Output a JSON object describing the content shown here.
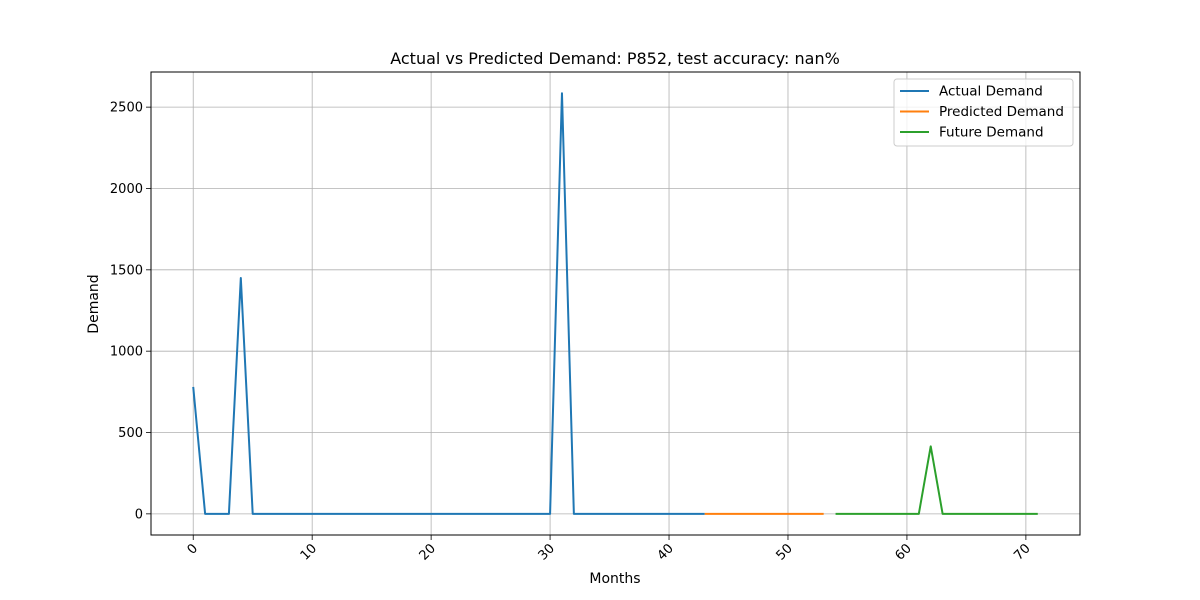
{
  "chart_data": {
    "type": "line",
    "title": "Actual vs Predicted Demand: P852, test accuracy: nan%",
    "xlabel": "Months",
    "ylabel": "Demand",
    "xlim": [
      -3.55,
      74.55
    ],
    "ylim": [
      -130,
      2716
    ],
    "xticks": [
      0,
      10,
      20,
      30,
      40,
      50,
      60,
      70
    ],
    "yticks": [
      0,
      500,
      1000,
      1500,
      2000,
      2500
    ],
    "grid": true,
    "legend_position": "top-right",
    "series": [
      {
        "name": "Actual Demand",
        "color": "#1f77b4",
        "x": [
          0,
          1,
          2,
          3,
          4,
          5,
          6,
          7,
          8,
          9,
          10,
          11,
          12,
          13,
          14,
          15,
          16,
          17,
          18,
          19,
          20,
          21,
          22,
          23,
          24,
          25,
          26,
          27,
          28,
          29,
          30,
          31,
          32,
          33,
          34,
          35,
          36,
          37,
          38,
          39,
          40,
          41,
          42,
          43
        ],
        "values": [
          780,
          0,
          0,
          0,
          1450,
          0,
          0,
          0,
          0,
          0,
          0,
          0,
          0,
          0,
          0,
          0,
          0,
          0,
          0,
          0,
          0,
          0,
          0,
          0,
          0,
          0,
          0,
          0,
          0,
          0,
          0,
          2585,
          0,
          0,
          0,
          0,
          0,
          0,
          0,
          0,
          0,
          0,
          0,
          0
        ]
      },
      {
        "name": "Predicted Demand",
        "color": "#ff7f0e",
        "x": [
          43,
          44,
          45,
          46,
          47,
          48,
          49,
          50,
          51,
          52,
          53
        ],
        "values": [
          0,
          0,
          0,
          0,
          0,
          0,
          0,
          0,
          0,
          0,
          0
        ]
      },
      {
        "name": "Future Demand",
        "color": "#2ca02c",
        "x": [
          54,
          55,
          56,
          57,
          58,
          59,
          60,
          61,
          62,
          63,
          64,
          65,
          66,
          67,
          68,
          69,
          70,
          71
        ],
        "values": [
          0,
          0,
          0,
          0,
          0,
          0,
          0,
          0,
          415,
          0,
          0,
          0,
          0,
          0,
          0,
          0,
          0,
          0
        ]
      }
    ]
  }
}
